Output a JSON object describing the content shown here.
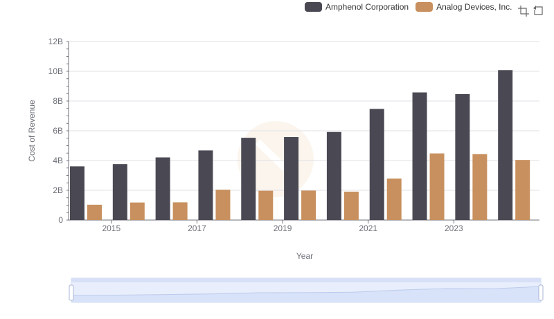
{
  "legend": {
    "items": [
      {
        "label": "Amphenol Corporation",
        "color": "#4a4953"
      },
      {
        "label": "Analog Devices, Inc.",
        "color": "#c8905e"
      }
    ]
  },
  "toolbar": {
    "icons": [
      "zoom-icon",
      "restore-icon"
    ]
  },
  "chart_data": {
    "type": "bar",
    "xlabel": "Year",
    "ylabel": "Cost of Revenue",
    "categories": [
      "2014",
      "2015",
      "2016",
      "2017",
      "2018",
      "2019",
      "2020",
      "2021",
      "2022",
      "2023",
      "2024"
    ],
    "x_tick_labels": [
      "2015",
      "2017",
      "2019",
      "2021",
      "2023"
    ],
    "y_tick_labels": [
      "0",
      "2B",
      "4B",
      "6B",
      "8B",
      "10B",
      "12B"
    ],
    "ylim": [
      0,
      12000000000
    ],
    "grid": true,
    "legend_position": "top-right",
    "series": [
      {
        "name": "Amphenol Corporation",
        "color": "#4a4953",
        "values": [
          3610000000,
          3760000000,
          4210000000,
          4680000000,
          5530000000,
          5580000000,
          5920000000,
          7470000000,
          8580000000,
          8470000000,
          10080000000
        ]
      },
      {
        "name": "Analog Devices, Inc.",
        "color": "#c8905e",
        "values": [
          1030000000,
          1180000000,
          1190000000,
          2040000000,
          1970000000,
          1980000000,
          1910000000,
          2790000000,
          4480000000,
          4430000000,
          4040000000
        ]
      }
    ],
    "data_zoom": {
      "start": 0,
      "end": 100
    }
  }
}
